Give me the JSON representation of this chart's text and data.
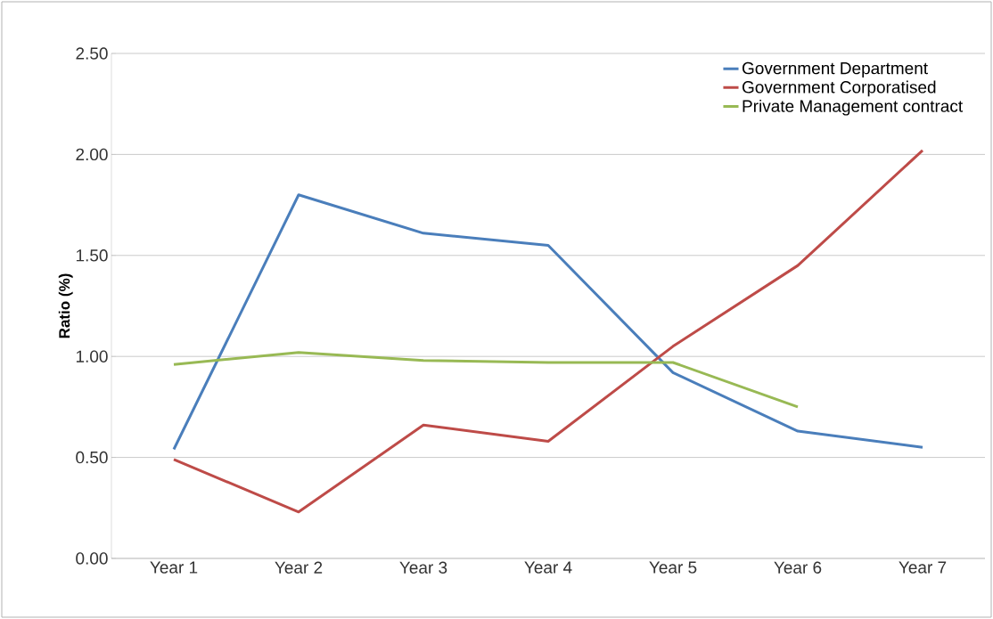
{
  "chart_data": {
    "type": "line",
    "ylabel": "Ratio (%)",
    "categories": [
      "Year 1",
      "Year 2",
      "Year 3",
      "Year 4",
      "Year 5",
      "Year 6",
      "Year 7"
    ],
    "series": [
      {
        "name": "Government Department",
        "color": "#4a7ebb",
        "values": [
          0.54,
          1.8,
          1.61,
          1.55,
          0.92,
          0.63,
          0.55
        ]
      },
      {
        "name": "Government Corporatised",
        "color": "#be4b48",
        "values": [
          0.49,
          0.23,
          0.66,
          0.58,
          1.05,
          1.45,
          2.02
        ]
      },
      {
        "name": "Private Management contract",
        "color": "#98b954",
        "values": [
          0.96,
          1.02,
          0.98,
          0.97,
          0.97,
          0.75,
          null
        ]
      }
    ],
    "ylim": [
      0,
      2.5
    ],
    "yticks": [
      {
        "value": 0,
        "label": "0.00"
      },
      {
        "value": 0.5,
        "label": "0.50"
      },
      {
        "value": 1,
        "label": "1.00"
      },
      {
        "value": 1.5,
        "label": "1.50"
      },
      {
        "value": 2,
        "label": "2.00"
      },
      {
        "value": 2.5,
        "label": "2.50"
      }
    ],
    "grid": "y",
    "legend": "top right",
    "marker": "none",
    "line_style": "solid"
  }
}
